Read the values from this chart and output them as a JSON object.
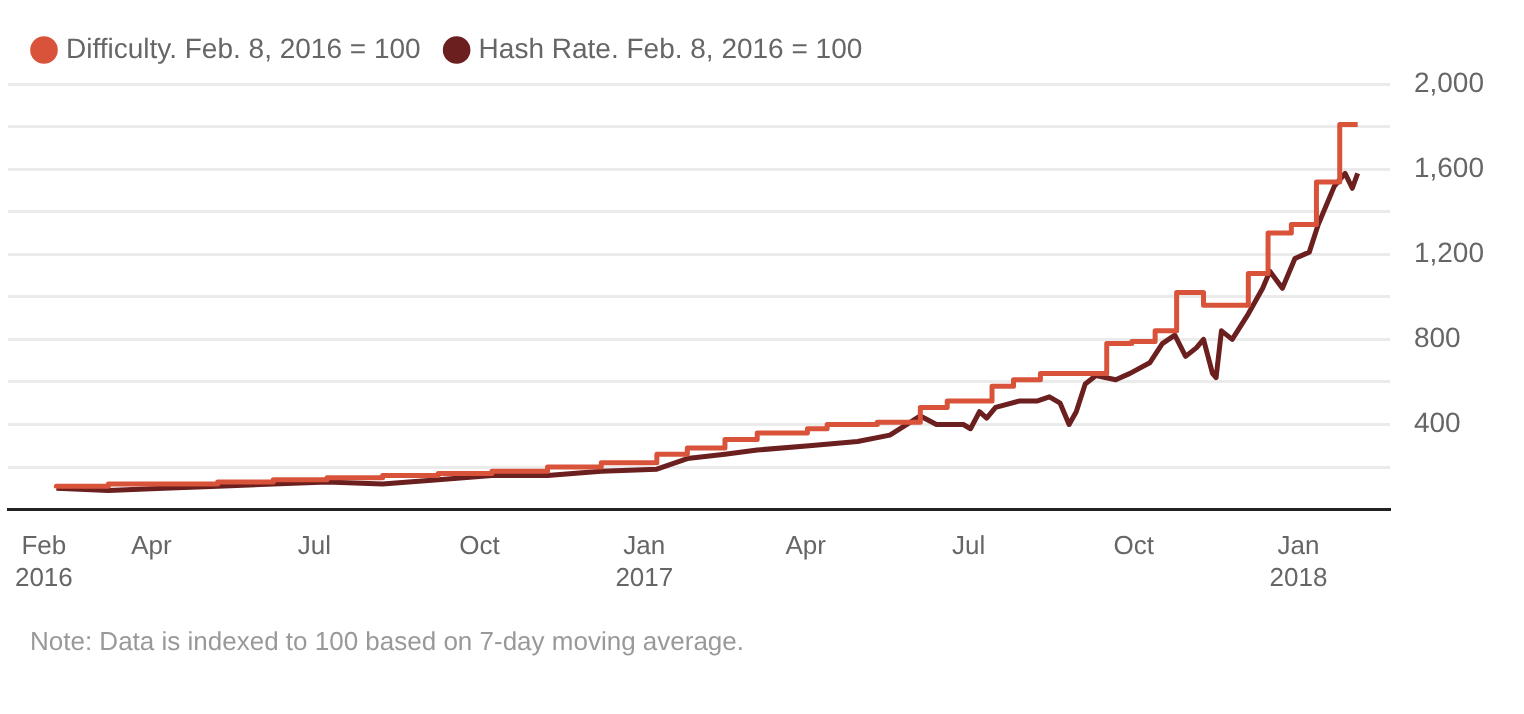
{
  "chart_data": {
    "type": "line",
    "annotations": [
      "Note: Data is indexed to 100 based on 7-day moving average."
    ],
    "xlim": [
      "2016-01-12",
      "2018-02-21"
    ],
    "xticks": [
      {
        "value": "2016-02-01",
        "label": "Feb\n2016"
      },
      {
        "value": "2016-04-01",
        "label": "Apr"
      },
      {
        "value": "2016-07-01",
        "label": "Jul"
      },
      {
        "value": "2016-10-01",
        "label": "Oct"
      },
      {
        "value": "2017-01-01",
        "label": "Jan\n2017"
      },
      {
        "value": "2017-04-01",
        "label": "Apr"
      },
      {
        "value": "2017-07-01",
        "label": "Jul"
      },
      {
        "value": "2017-10-01",
        "label": "Oct"
      },
      {
        "value": "2018-01-01",
        "label": "Jan\n2018"
      }
    ],
    "ylim": [
      0,
      2000
    ],
    "yticks": [
      {
        "value": 0,
        "label": null
      },
      {
        "value": 200,
        "label": null
      },
      400,
      {
        "value": 600,
        "label": null
      },
      800,
      {
        "value": 1000,
        "label": null
      },
      {
        "value": 1200,
        "label": "1,200"
      },
      {
        "value": 1400,
        "label": null
      },
      {
        "value": 1600,
        "label": "1,600"
      },
      {
        "value": 1800,
        "label": null
      },
      {
        "value": 2000,
        "label": "2,000"
      }
    ],
    "grid": "y",
    "legend": "top left",
    "marker": "none",
    "series": [
      {
        "name": "Difficulty. Feb. 8, 2016 = 100",
        "type": "step",
        "color": "#d9533b",
        "x": [
          "2016-02-08",
          "2016-03-08",
          "2016-04-08",
          "2016-05-08",
          "2016-06-08",
          "2016-07-08",
          "2016-08-08",
          "2016-09-08",
          "2016-10-08",
          "2016-11-08",
          "2016-12-08",
          "2017-01-08",
          "2017-01-25",
          "2017-02-15",
          "2017-03-05",
          "2017-04-02",
          "2017-04-13",
          "2017-05-11",
          "2017-06-04",
          "2017-06-19",
          "2017-07-14",
          "2017-07-26",
          "2017-08-10",
          "2017-09-05",
          "2017-09-16",
          "2017-09-30",
          "2017-10-13",
          "2017-10-25",
          "2017-11-09",
          "2017-12-04",
          "2017-12-15",
          "2017-12-28",
          "2018-01-11",
          "2018-01-24",
          "2018-02-03"
        ],
        "values": [
          100,
          110,
          120,
          120,
          130,
          140,
          150,
          160,
          170,
          180,
          200,
          220,
          260,
          290,
          330,
          360,
          380,
          400,
          410,
          480,
          510,
          580,
          610,
          640,
          640,
          780,
          790,
          840,
          1020,
          960,
          1110,
          1300,
          1340,
          1540,
          1810
        ]
      },
      {
        "name": "Hash Rate. Feb. 8, 2016 = 100",
        "type": "line",
        "color": "#6b1f1f",
        "x": [
          "2016-02-08",
          "2016-03-08",
          "2016-04-08",
          "2016-05-08",
          "2016-06-08",
          "2016-07-08",
          "2016-08-08",
          "2016-09-08",
          "2016-10-08",
          "2016-11-08",
          "2016-12-08",
          "2017-01-08",
          "2017-01-25",
          "2017-02-15",
          "2017-03-05",
          "2017-04-03",
          "2017-04-30",
          "2017-05-18",
          "2017-06-04",
          "2017-06-13",
          "2017-06-28",
          "2017-07-02",
          "2017-07-07",
          "2017-07-11",
          "2017-07-16",
          "2017-07-29",
          "2017-08-08",
          "2017-08-15",
          "2017-08-21",
          "2017-08-26",
          "2017-08-30",
          "2017-09-04",
          "2017-09-10",
          "2017-09-21",
          "2017-09-29",
          "2017-10-10",
          "2017-10-17",
          "2017-10-24",
          "2017-10-30",
          "2017-11-05",
          "2017-11-09",
          "2017-11-14",
          "2017-11-16",
          "2017-11-19",
          "2017-11-25",
          "2017-12-04",
          "2017-12-12",
          "2017-12-16",
          "2017-12-23",
          "2017-12-30",
          "2018-01-07",
          "2018-01-12",
          "2018-01-21",
          "2018-01-27",
          "2018-01-31",
          "2018-02-03"
        ],
        "values": [
          100,
          90,
          100,
          110,
          120,
          130,
          120,
          140,
          160,
          160,
          180,
          190,
          240,
          260,
          280,
          300,
          320,
          350,
          440,
          400,
          400,
          380,
          460,
          430,
          480,
          510,
          510,
          530,
          500,
          400,
          460,
          590,
          630,
          610,
          640,
          690,
          780,
          820,
          720,
          760,
          800,
          640,
          620,
          840,
          800,
          920,
          1040,
          1120,
          1040,
          1180,
          1210,
          1340,
          1520,
          1580,
          1510,
          1580
        ]
      }
    ]
  }
}
